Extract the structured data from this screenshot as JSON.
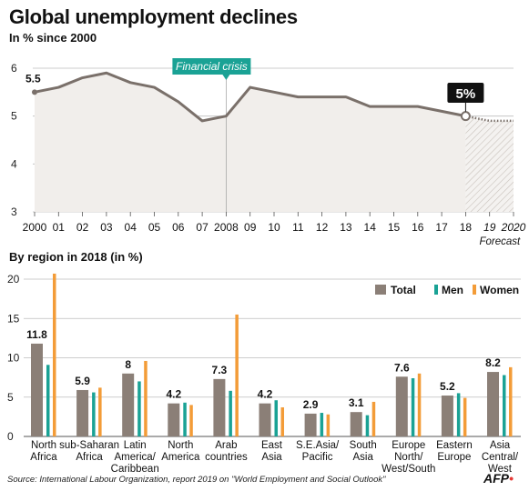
{
  "title": "Global unemployment declines",
  "subtitle": "In % since 2000",
  "bar_title": "By region in 2018 (in %)",
  "source": "Source: International Labour Organization, report 2019 on \"World Employment and Social Outlook\"",
  "credit": "AFP",
  "colors": {
    "line": "#7a706a",
    "area": "#f1eeeb",
    "grid": "#bdbdbd",
    "callout": "#1aa295",
    "total": "#8b7f77",
    "men": "#1aa295",
    "women": "#f39c38"
  },
  "chart_data": [
    {
      "type": "line",
      "title": "Global unemployment declines",
      "subtitle": "In % since 2000",
      "x": [
        2000,
        2001,
        2002,
        2003,
        2004,
        2005,
        2006,
        2007,
        2008,
        2009,
        2010,
        2011,
        2012,
        2013,
        2014,
        2015,
        2016,
        2017,
        2018,
        2019,
        2020
      ],
      "x_tick_labels": [
        "2000",
        "01",
        "02",
        "03",
        "04",
        "05",
        "06",
        "07",
        "2008",
        "09",
        "10",
        "11",
        "12",
        "13",
        "14",
        "15",
        "16",
        "17",
        "18",
        "19",
        "2020"
      ],
      "y": [
        5.5,
        5.6,
        5.8,
        5.9,
        5.7,
        5.6,
        5.3,
        4.9,
        5.0,
        5.6,
        5.5,
        5.4,
        5.4,
        5.4,
        5.2,
        5.2,
        5.2,
        5.1,
        5.0,
        4.9,
        4.9
      ],
      "forecast_from": 2018,
      "forecast_label": "Forecast",
      "ylim": [
        3,
        6
      ],
      "yticks": [
        3,
        4,
        5,
        6
      ],
      "grid": true,
      "annotations": [
        {
          "x": 2008,
          "text": "Financial crisis"
        },
        {
          "x": 2018,
          "text": "5%"
        },
        {
          "x": 2000,
          "text": "5.5"
        }
      ]
    },
    {
      "type": "bar",
      "title": "By region in 2018 (in %)",
      "categories": [
        [
          "North",
          "Africa"
        ],
        [
          "sub-Saharan",
          "Africa"
        ],
        [
          "Latin",
          "America/",
          "Caribbean"
        ],
        [
          "North",
          "America"
        ],
        [
          "Arab",
          "countries"
        ],
        [
          "East",
          "Asia"
        ],
        [
          "S.E.Asia/",
          "Pacific"
        ],
        [
          "South",
          "Asia"
        ],
        [
          "Europe",
          "North/",
          "West/South"
        ],
        [
          "Eastern",
          "Europe"
        ],
        [
          "Asia",
          "Central/",
          "West"
        ]
      ],
      "series": [
        {
          "name": "Total",
          "values": [
            11.8,
            5.9,
            8.0,
            4.2,
            7.3,
            4.2,
            2.9,
            3.1,
            7.6,
            5.2,
            8.2
          ]
        },
        {
          "name": "Men",
          "values": [
            9.1,
            5.6,
            7.0,
            4.3,
            5.8,
            4.6,
            3.0,
            2.7,
            7.4,
            5.5,
            7.8
          ]
        },
        {
          "name": "Women",
          "values": [
            20.7,
            6.2,
            9.6,
            4.0,
            15.5,
            3.7,
            2.8,
            4.4,
            8.0,
            4.9,
            8.8
          ]
        }
      ],
      "data_labels": [
        "11.8",
        "5.9",
        "8",
        "4.2",
        "7.3",
        "4.2",
        "2.9",
        "3.1",
        "7.6",
        "5.2",
        "8.2"
      ],
      "ylim": [
        0,
        21
      ],
      "yticks": [
        0,
        5,
        10,
        15,
        20
      ],
      "legend": "top-right",
      "grid": true
    }
  ]
}
